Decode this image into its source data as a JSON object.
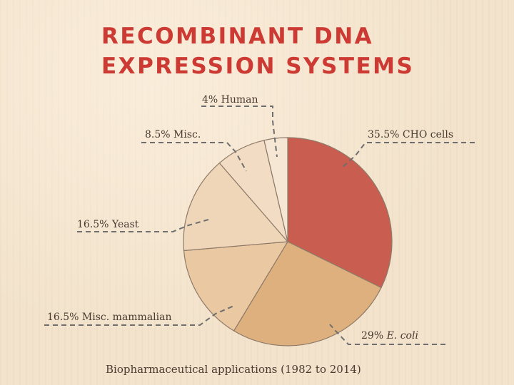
{
  "title": {
    "line1": "RECOMBINANT DNA",
    "line2": "EXPRESSION SYSTEMS"
  },
  "caption": "Biopharmaceutical applications (1982 to 2014)",
  "chart_data": {
    "type": "pie",
    "title": "RECOMBINANT DNA EXPRESSION SYSTEMS",
    "subtitle": "Biopharmaceutical applications (1982 to 2014)",
    "slices": [
      {
        "key": "cho",
        "label": "35.5% CHO cells",
        "pct_text": "35.5%",
        "name_text": "CHO cells",
        "value": 35.5,
        "color": "#c95d4f"
      },
      {
        "key": "ecoli",
        "label": "29% E. coli",
        "pct_text": "29%",
        "name_text": "E. coli",
        "value": 29,
        "color": "#ddb07e"
      },
      {
        "key": "miscmam",
        "label": "16.5% Misc. mammalian",
        "pct_text": "16.5%",
        "name_text": "Misc. mammalian",
        "value": 16.5,
        "color": "#e9c8a2"
      },
      {
        "key": "yeast",
        "label": "16.5% Yeast",
        "pct_text": "16.5%",
        "name_text": "Yeast",
        "value": 16.5,
        "color": "#efd6b8"
      },
      {
        "key": "misc",
        "label": "8.5% Misc.",
        "pct_text": "8.5%",
        "name_text": "Misc.",
        "value": 8.5,
        "color": "#f2dcc3"
      },
      {
        "key": "human",
        "label": "4% Human",
        "pct_text": "4%",
        "name_text": "Human",
        "value": 4,
        "color": "#f6e7d4"
      }
    ],
    "colors": {
      "edge": "#8e7a68",
      "leader": "#6e6e6e",
      "title": "#cc3a33"
    }
  }
}
